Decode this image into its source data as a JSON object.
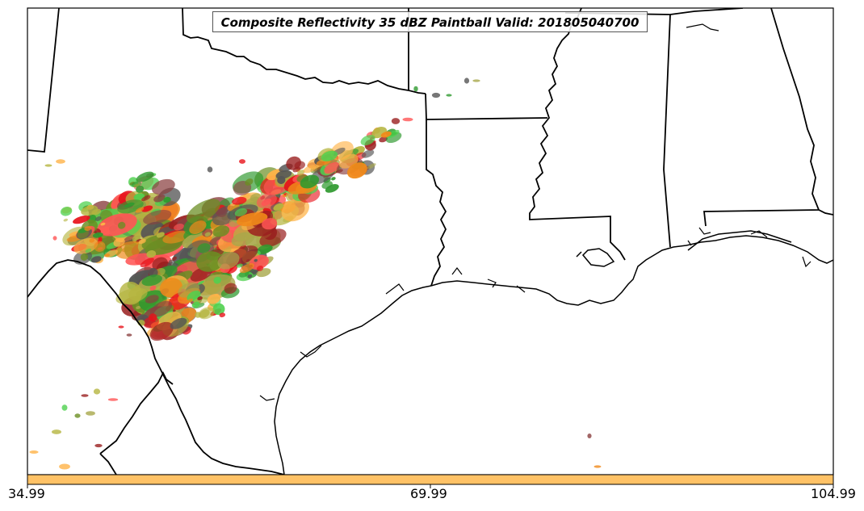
{
  "map": {
    "title": "Composite Reflectivity 35 dBZ Paintball Valid: 201805040700",
    "colorbar": {
      "color": "#ffc266",
      "tick_labels": [
        "34.99",
        "69.99",
        "104.99"
      ]
    },
    "colors": {
      "background": "#ffffff",
      "borders": "#000000",
      "member_colors": [
        "#e8111a",
        "#ff5555",
        "#f08a1a",
        "#ffb347",
        "#9a1f1f",
        "#8b4040",
        "#4fd14f",
        "#2f9a2f",
        "#a8a84a",
        "#b5b540",
        "#555555",
        "#6b8e23"
      ]
    }
  }
}
